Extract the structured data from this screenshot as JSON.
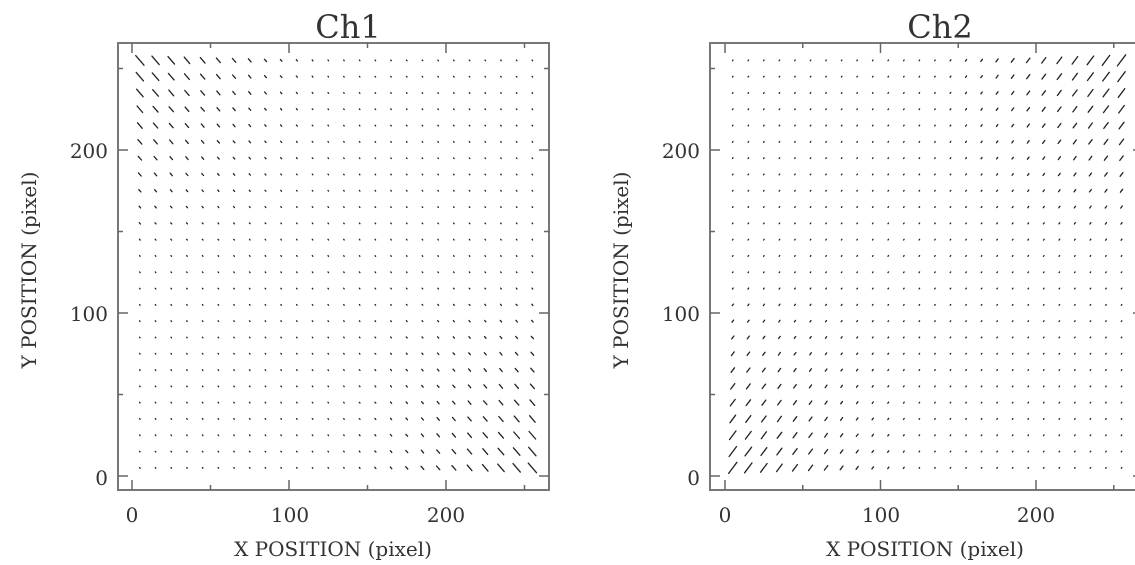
{
  "chart_data": [
    {
      "type": "quiver",
      "title": "Ch1",
      "xlabel": "X POSITION (pixel)",
      "ylabel": "Y POSITION (pixel)",
      "xlim": [
        -8,
        264
      ],
      "ylim": [
        -10,
        264
      ],
      "xticks": [
        0,
        100,
        200
      ],
      "yticks": [
        0,
        100,
        200
      ],
      "grid_spacing": 10,
      "grid_range": [
        5,
        255
      ],
      "field_description": "distortion vector field; vectors largest at top-left and bottom-right corners, near zero in centre",
      "color": "#222222"
    },
    {
      "type": "quiver",
      "title": "Ch2",
      "xlabel": "X POSITION (pixel)",
      "ylabel": "Y POSITION (pixel)",
      "xlim": [
        -8,
        264
      ],
      "ylim": [
        -10,
        264
      ],
      "xticks": [
        0,
        100,
        200
      ],
      "yticks": [
        0,
        100,
        200
      ],
      "grid_spacing": 10,
      "grid_range": [
        5,
        255
      ],
      "field_description": "distortion vector field; vectors largest at bottom-left and top-right corners, near zero in centre",
      "color": "#222222"
    }
  ]
}
